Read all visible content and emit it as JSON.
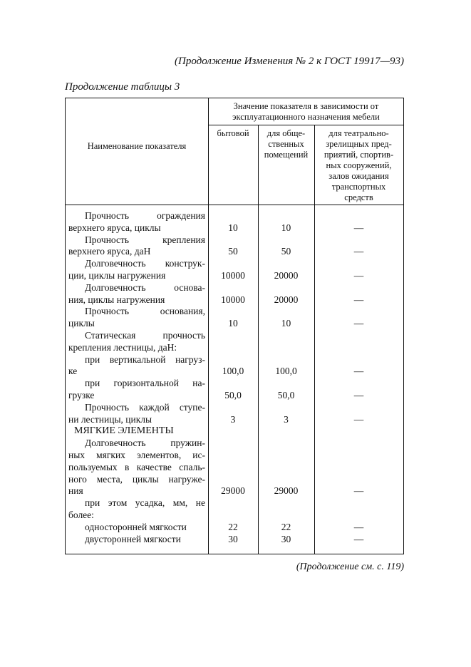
{
  "header": "(Продолжение Изменения № 2 к ГОСТ 19917—93)",
  "caption": "Продолжение таблицы 3",
  "footer": "(Продолжение см. с. 119)",
  "table": {
    "col_name": "Наименование показателя",
    "group_header": [
      "Значение показателя в зависимости от",
      "эксплуатационного назначения мебели"
    ],
    "sub_headers": [
      [
        "бытовой"
      ],
      [
        "для обще-",
        "ственных",
        "помещений"
      ],
      [
        "для театрально-",
        "зрелищных пред-",
        "приятий, спортив-",
        "ных сооружений,",
        "залов ожидания",
        "транспортных",
        "средств"
      ]
    ],
    "rows": [
      {
        "lines": [
          "Прочность ограждения",
          "верхнего яруса, циклы"
        ],
        "values": [
          "10",
          "10",
          "—"
        ]
      },
      {
        "lines": [
          "Прочность крепления",
          "верхнего яруса, даН"
        ],
        "values": [
          "50",
          "50",
          "—"
        ]
      },
      {
        "lines": [
          "Долговечность конструк-",
          "ции, циклы нагружения"
        ],
        "values": [
          "10000",
          "20000",
          "—"
        ]
      },
      {
        "lines": [
          "Долговечность основа-",
          "ния, циклы нагружения"
        ],
        "values": [
          "10000",
          "20000",
          "—"
        ]
      },
      {
        "lines": [
          "Прочность основания,",
          "циклы"
        ],
        "values": [
          "10",
          "10",
          "—"
        ]
      },
      {
        "lines": [
          "Статическая прочность",
          "крепления лестницы, даН:"
        ],
        "values": [
          "",
          "",
          ""
        ]
      },
      {
        "lines": [
          "при вертикальной нагруз-",
          "ке"
        ],
        "values": [
          "100,0",
          "100,0",
          "—"
        ]
      },
      {
        "lines": [
          "при горизонтальной на-",
          "грузке"
        ],
        "values": [
          "50,0",
          "50,0",
          "—"
        ]
      },
      {
        "lines": [
          "Прочность каждой ступе-",
          "ни лестницы, циклы"
        ],
        "values": [
          "3",
          "3",
          "—"
        ]
      },
      {
        "section": "МЯГКИЕ ЭЛЕМЕНТЫ"
      },
      {
        "lines": [
          "Долговечность пружин-",
          "ных мягких элементов, ис-",
          "пользуемых в качестве спаль-",
          "ного места, циклы нагруже-",
          "ния"
        ],
        "values": [
          "29000",
          "29000",
          "—"
        ]
      },
      {
        "lines": [
          "при этом усадка, мм, не",
          "более:"
        ],
        "values": [
          "",
          "",
          ""
        ]
      },
      {
        "lines": [
          "односторонней мягкости"
        ],
        "values": [
          "22",
          "22",
          "—"
        ],
        "indent": true
      },
      {
        "lines": [
          "двусторонней мягкости"
        ],
        "values": [
          "30",
          "30",
          "—"
        ],
        "indent": true
      }
    ]
  }
}
